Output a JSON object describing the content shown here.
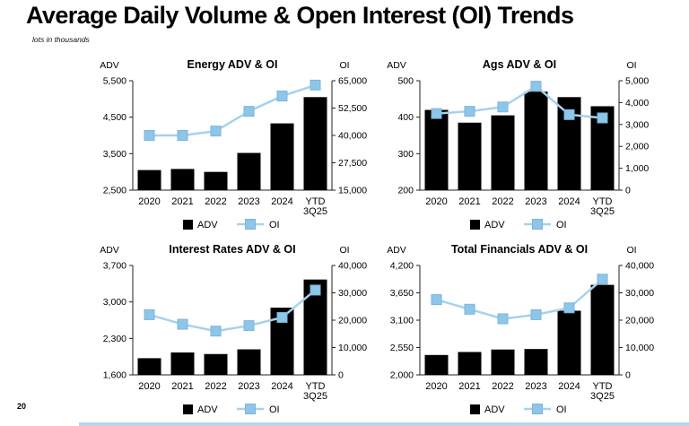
{
  "page": {
    "title": "Average Daily Volume & Open Interest (OI) Trends",
    "subtitle": "lots in thousands",
    "page_number": "20"
  },
  "colors": {
    "bar": "#000000",
    "oi_line": "#a6d2ee",
    "oi_marker_fill": "#8ec6e8",
    "oi_marker_stroke": "#7ab5dd",
    "axis": "#222222",
    "text": "#000000",
    "footer_bar": "#b7d7ec"
  },
  "legend": {
    "adv": "ADV",
    "oi": "OI"
  },
  "chart_data": [
    {
      "type": "bar+line",
      "title": "Energy ADV & OI",
      "left_axis_title": "ADV",
      "right_axis_title": "OI",
      "categories": [
        "2020",
        "2021",
        "2022",
        "2023",
        "2024",
        "YTD 3Q25"
      ],
      "series": [
        {
          "name": "ADV",
          "type": "bar",
          "axis": "left",
          "values": [
            3050,
            3080,
            3000,
            3520,
            4330,
            5050
          ]
        },
        {
          "name": "OI",
          "type": "line",
          "axis": "right",
          "values": [
            40000,
            40000,
            42000,
            51000,
            58000,
            63000
          ]
        }
      ],
      "left_axis": {
        "ticks": [
          2500,
          3500,
          4500,
          5500
        ],
        "range": [
          2500,
          5500
        ]
      },
      "right_axis": {
        "ticks": [
          15000,
          27500,
          40000,
          52500,
          65000
        ],
        "range": [
          15000,
          65000
        ]
      },
      "grid": false,
      "legend_position": "bottom"
    },
    {
      "type": "bar+line",
      "title": "Ags ADV & OI",
      "left_axis_title": "ADV",
      "right_axis_title": "OI",
      "categories": [
        "2020",
        "2021",
        "2022",
        "2023",
        "2024",
        "YTD 3Q25"
      ],
      "series": [
        {
          "name": "ADV",
          "type": "bar",
          "axis": "left",
          "values": [
            420,
            385,
            405,
            470,
            455,
            430
          ]
        },
        {
          "name": "OI",
          "type": "line",
          "axis": "right",
          "values": [
            3500,
            3600,
            3800,
            4750,
            3450,
            3300
          ]
        }
      ],
      "left_axis": {
        "ticks": [
          200,
          300,
          400,
          500
        ],
        "range": [
          200,
          500
        ]
      },
      "right_axis": {
        "ticks": [
          0,
          1000,
          2000,
          3000,
          4000,
          5000
        ],
        "range": [
          0,
          5000
        ]
      },
      "grid": false,
      "legend_position": "bottom"
    },
    {
      "type": "bar+line",
      "title": "Interest Rates ADV & OI",
      "left_axis_title": "ADV",
      "right_axis_title": "OI",
      "categories": [
        "2020",
        "2021",
        "2022",
        "2023",
        "2024",
        "YTD 3Q25"
      ],
      "series": [
        {
          "name": "ADV",
          "type": "bar",
          "axis": "left",
          "values": [
            1920,
            2030,
            2000,
            2090,
            2890,
            3430
          ]
        },
        {
          "name": "OI",
          "type": "line",
          "axis": "right",
          "values": [
            22000,
            18500,
            16000,
            18000,
            21000,
            31000
          ]
        }
      ],
      "left_axis": {
        "ticks": [
          1600,
          2300,
          3000,
          3700
        ],
        "range": [
          1600,
          3700
        ]
      },
      "right_axis": {
        "ticks": [
          0,
          10000,
          20000,
          30000,
          40000
        ],
        "range": [
          0,
          40000
        ]
      },
      "grid": false,
      "legend_position": "bottom"
    },
    {
      "type": "bar+line",
      "title": "Total Financials ADV & OI",
      "left_axis_title": "ADV",
      "right_axis_title": "OI",
      "categories": [
        "2020",
        "2021",
        "2022",
        "2023",
        "2024",
        "YTD 3Q25"
      ],
      "series": [
        {
          "name": "ADV",
          "type": "bar",
          "axis": "left",
          "values": [
            2400,
            2460,
            2510,
            2520,
            3290,
            3810
          ]
        },
        {
          "name": "OI",
          "type": "line",
          "axis": "right",
          "values": [
            27500,
            24000,
            20500,
            22000,
            24500,
            35000
          ]
        }
      ],
      "left_axis": {
        "ticks": [
          2000,
          2550,
          3100,
          3650,
          4200
        ],
        "range": [
          2000,
          4200
        ]
      },
      "right_axis": {
        "ticks": [
          0,
          10000,
          20000,
          30000,
          40000
        ],
        "range": [
          0,
          40000
        ]
      },
      "grid": false,
      "legend_position": "bottom"
    }
  ]
}
